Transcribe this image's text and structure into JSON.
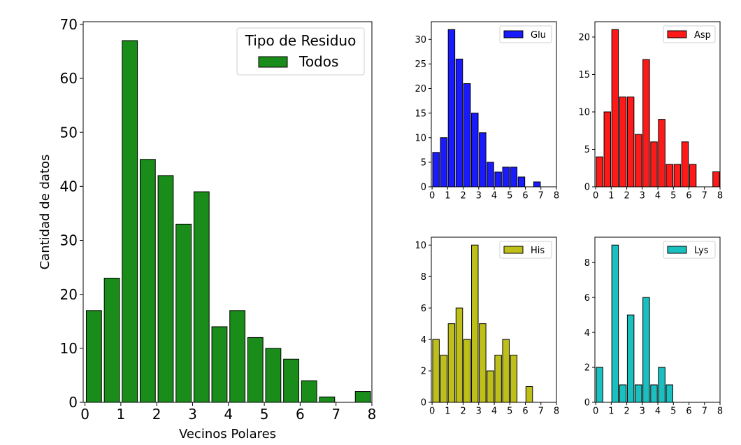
{
  "chart_data": [
    {
      "id": "main",
      "type": "bar",
      "xlabel": "Vecinos Polares",
      "ylabel": "Cantidad de datos",
      "xlim": [
        -0.05,
        8
      ],
      "ylim": [
        0,
        70.5
      ],
      "xticks": [
        0,
        1,
        2,
        3,
        4,
        5,
        6,
        7,
        8
      ],
      "yticks": [
        0,
        10,
        20,
        30,
        40,
        50,
        60,
        70
      ],
      "bin_width": 0.5,
      "bar_fraction": 0.85,
      "legend": {
        "title": "Tipo de Residuo",
        "position": "top-right"
      },
      "series": [
        {
          "name": "Todos",
          "color": "#1a8c1a",
          "x": [
            0,
            0.5,
            1,
            1.5,
            2,
            2.5,
            3,
            3.5,
            4,
            4.5,
            5,
            5.5,
            6,
            6.5,
            7,
            7.5
          ],
          "values": [
            17,
            23,
            67,
            45,
            42,
            33,
            39,
            14,
            17,
            12,
            10,
            8,
            4,
            1,
            0,
            2
          ]
        }
      ]
    },
    {
      "id": "glu",
      "type": "bar",
      "xlim": [
        -0.05,
        8
      ],
      "ylim": [
        0,
        33.6
      ],
      "xticks": [
        0,
        1,
        2,
        3,
        4,
        5,
        6,
        7,
        8
      ],
      "yticks": [
        0,
        5,
        10,
        15,
        20,
        25,
        30
      ],
      "bin_width": 0.5,
      "bar_fraction": 0.85,
      "legend": {
        "position": "top-right"
      },
      "series": [
        {
          "name": "Glu",
          "color": "#1a1aff",
          "x": [
            0,
            0.5,
            1,
            1.5,
            2,
            2.5,
            3,
            3.5,
            4,
            4.5,
            5,
            5.5,
            6,
            6.5
          ],
          "values": [
            7,
            10,
            32,
            26,
            21,
            15,
            11,
            5,
            3,
            4,
            4,
            2,
            0,
            1
          ]
        }
      ]
    },
    {
      "id": "asp",
      "type": "bar",
      "xlim": [
        -0.05,
        8
      ],
      "ylim": [
        0,
        22.05
      ],
      "xticks": [
        0,
        1,
        2,
        3,
        4,
        5,
        6,
        7,
        8
      ],
      "yticks": [
        0,
        5,
        10,
        15,
        20
      ],
      "bin_width": 0.5,
      "bar_fraction": 0.85,
      "legend": {
        "position": "top-right"
      },
      "series": [
        {
          "name": "Asp",
          "color": "#ff1a1a",
          "x": [
            0,
            0.5,
            1,
            1.5,
            2,
            2.5,
            3,
            3.5,
            4,
            4.5,
            5,
            5.5,
            6,
            6.5,
            7,
            7.5
          ],
          "values": [
            4,
            10,
            21,
            12,
            12,
            7,
            17,
            6,
            9,
            3,
            3,
            6,
            3,
            0,
            0,
            2
          ]
        }
      ]
    },
    {
      "id": "his",
      "type": "bar",
      "xlim": [
        -0.05,
        8
      ],
      "ylim": [
        0,
        10.5
      ],
      "xticks": [
        0,
        1,
        2,
        3,
        4,
        5,
        6,
        7,
        8
      ],
      "yticks": [
        0,
        2,
        4,
        6,
        8,
        10
      ],
      "bin_width": 0.5,
      "bar_fraction": 0.85,
      "legend": {
        "position": "top-right"
      },
      "series": [
        {
          "name": "His",
          "color": "#bfbf1a",
          "x": [
            0,
            0.5,
            1,
            1.5,
            2,
            2.5,
            3,
            3.5,
            4,
            4.5,
            5,
            5.5,
            6
          ],
          "values": [
            4,
            3,
            5,
            6,
            4,
            10,
            5,
            2,
            3,
            4,
            3,
            0,
            1
          ]
        }
      ]
    },
    {
      "id": "lys",
      "type": "bar",
      "xlim": [
        -0.05,
        8
      ],
      "ylim": [
        0,
        9.45
      ],
      "xticks": [
        0,
        1,
        2,
        3,
        4,
        5,
        6,
        7,
        8
      ],
      "yticks": [
        0,
        2,
        4,
        6,
        8
      ],
      "bin_width": 0.5,
      "bar_fraction": 0.85,
      "legend": {
        "position": "top-right"
      },
      "series": [
        {
          "name": "Lys",
          "color": "#1abfbf",
          "x": [
            0,
            0.5,
            1,
            1.5,
            2,
            2.5,
            3,
            3.5,
            4,
            4.5
          ],
          "values": [
            2,
            0,
            9,
            1,
            5,
            1,
            6,
            1,
            2,
            1
          ]
        }
      ]
    }
  ]
}
